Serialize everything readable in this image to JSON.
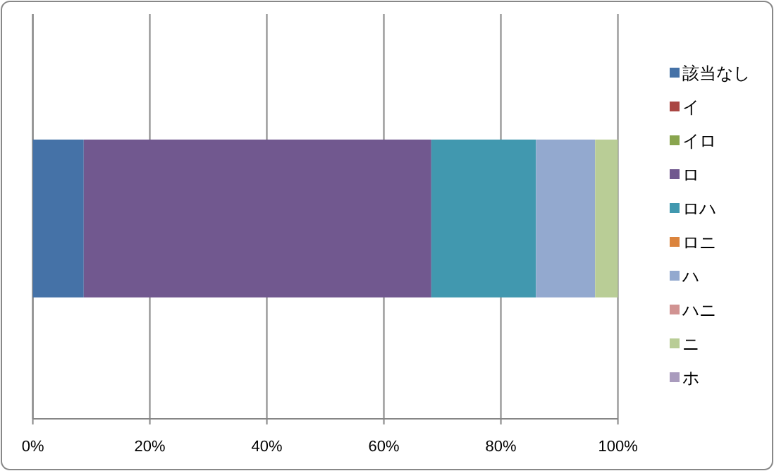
{
  "chart_data": {
    "type": "bar",
    "orientation": "horizontal",
    "stacked": true,
    "categories": [
      null
    ],
    "series": [
      {
        "name": "該当なし",
        "color": "#4572a7",
        "values": [
          8.7
        ]
      },
      {
        "name": "イ",
        "color": "#aa4643",
        "values": [
          0
        ]
      },
      {
        "name": "イロ",
        "color": "#89a54e",
        "values": [
          0
        ]
      },
      {
        "name": "ロ",
        "color": "#71588f",
        "values": [
          59.4
        ]
      },
      {
        "name": "ロハ",
        "color": "#4198af",
        "values": [
          17.9
        ]
      },
      {
        "name": "ロニ",
        "color": "#db843d",
        "values": [
          0
        ]
      },
      {
        "name": "ハ",
        "color": "#93a9cf",
        "values": [
          10.1
        ]
      },
      {
        "name": "ハニ",
        "color": "#d19392",
        "values": [
          0
        ]
      },
      {
        "name": "ニ",
        "color": "#b9cd96",
        "values": [
          3.9
        ]
      },
      {
        "name": "ホ",
        "color": "#a99bbd",
        "values": [
          0
        ]
      }
    ],
    "xlim": [
      0,
      100
    ],
    "xticks": [
      {
        "value": 0,
        "label": "0%"
      },
      {
        "value": 20,
        "label": "20%"
      },
      {
        "value": 40,
        "label": "40%"
      },
      {
        "value": 60,
        "label": "60%"
      },
      {
        "value": 80,
        "label": "80%"
      },
      {
        "value": 100,
        "label": "100%"
      }
    ],
    "grid": "x",
    "legend": "right"
  }
}
